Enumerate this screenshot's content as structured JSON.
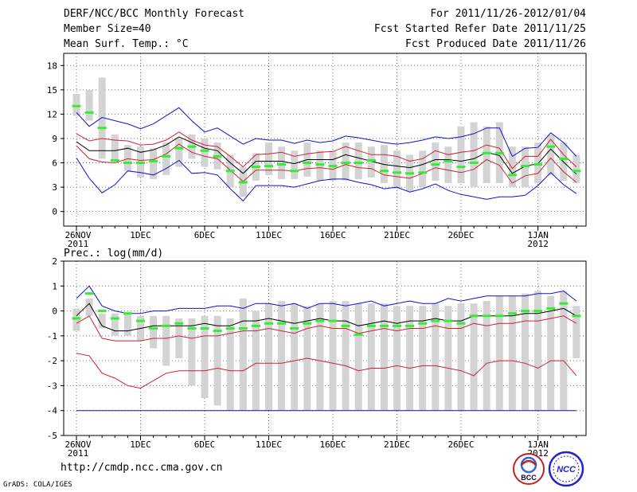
{
  "header": {
    "left": [
      "DERF/NCC/BCC Monthly Forecast",
      "Member Size=40",
      "Mean Surf. Temp.: °C"
    ],
    "right": [
      "For 2011/11/26-2012/01/04",
      "Fcst Started Refer Date 2011/11/25",
      "Fcst Produced Date 2011/11/26"
    ]
  },
  "footer": {
    "url": "http://cmdp.ncc.cma.gov.cn",
    "grads": "GrADS: COLA/IGES",
    "logo_left": "BCC",
    "logo_right": "NCC"
  },
  "colors": {
    "box": "#d3d3d3",
    "median": "#33ee33",
    "mean": "#000000",
    "inner": "#cc2233",
    "outer": "#1111cc",
    "grid": "#777777"
  },
  "chart_data": [
    {
      "type": "box-whisker-ensemble",
      "title": "Mean Surf. Temp.: °C",
      "ylim": [
        -1.8,
        19.5
      ],
      "yticks": [
        0,
        3,
        6,
        9,
        12,
        15,
        18
      ],
      "x_tick_labels": [
        {
          "day": 0,
          "label": "26NOV",
          "sub": "2011"
        },
        {
          "day": 5,
          "label": "1DEC"
        },
        {
          "day": 10,
          "label": "6DEC"
        },
        {
          "day": 15,
          "label": "11DEC"
        },
        {
          "day": 20,
          "label": "16DEC"
        },
        {
          "day": 25,
          "label": "21DEC"
        },
        {
          "day": 30,
          "label": "26DEC"
        },
        {
          "day": 36,
          "label": "1JAN",
          "sub": "2012"
        }
      ],
      "box_low": [
        11.8,
        11.2,
        6.5,
        6.2,
        5.0,
        4.2,
        4.0,
        4.5,
        5.5,
        6.5,
        5.5,
        5.2,
        3.0,
        1.8,
        3.8,
        4.5,
        4.0,
        4.0,
        4.3,
        3.8,
        3.8,
        3.8,
        4.0,
        4.2,
        3.5,
        2.8,
        2.5,
        3.0,
        3.8,
        3.5,
        3.5,
        3.0,
        3.5,
        3.5,
        3.0,
        3.0,
        3.5,
        4.5,
        3.8,
        3.5
      ],
      "box_high": [
        14.5,
        15.0,
        16.5,
        9.5,
        8.2,
        8.0,
        7.8,
        8.5,
        9.0,
        9.5,
        9.0,
        8.5,
        7.0,
        5.5,
        7.2,
        8.5,
        8.0,
        7.5,
        8.5,
        7.5,
        7.5,
        8.5,
        8.5,
        8.0,
        8.2,
        7.5,
        7.0,
        7.5,
        8.5,
        8.0,
        10.5,
        11.0,
        10.5,
        11.0,
        8.0,
        8.0,
        8.5,
        9.5,
        8.5,
        7.0
      ],
      "median": [
        13.0,
        12.2,
        10.3,
        6.3,
        6.0,
        6.0,
        6.2,
        6.8,
        7.8,
        8.0,
        7.5,
        6.8,
        5.0,
        3.6,
        5.5,
        5.6,
        5.8,
        5.0,
        6.0,
        5.8,
        5.6,
        6.0,
        6.0,
        6.3,
        5.0,
        4.8,
        4.7,
        4.8,
        5.8,
        6.2,
        5.5,
        6.0,
        7.2,
        7.2,
        4.5,
        5.6,
        5.8,
        8.0,
        6.5,
        5.0
      ],
      "series": [
        {
          "name": "max",
          "values": [
            12.2,
            10.5,
            11.6,
            11.2,
            10.8,
            10.2,
            10.8,
            11.8,
            12.8,
            11.2,
            9.8,
            10.3,
            9.3,
            8.3,
            9.0,
            8.8,
            8.8,
            8.4,
            8.8,
            8.5,
            8.7,
            9.3,
            9.1,
            8.8,
            8.5,
            8.3,
            8.5,
            8.8,
            9.2,
            9.0,
            9.2,
            9.6,
            10.3,
            10.3,
            6.8,
            7.8,
            7.9,
            9.7,
            8.5,
            6.8
          ]
        },
        {
          "name": "upper",
          "values": [
            9.6,
            8.7,
            9.0,
            8.8,
            8.7,
            8.2,
            8.3,
            8.8,
            9.8,
            8.8,
            8.2,
            8.0,
            6.8,
            5.5,
            7.0,
            7.1,
            7.3,
            6.8,
            7.1,
            7.3,
            7.4,
            8.0,
            7.5,
            7.0,
            7.0,
            6.8,
            6.2,
            6.5,
            7.5,
            7.0,
            7.3,
            7.5,
            8.2,
            7.8,
            5.3,
            6.8,
            6.8,
            8.9,
            7.0,
            5.5
          ]
        },
        {
          "name": "mean",
          "values": [
            8.6,
            7.5,
            7.5,
            7.5,
            7.8,
            7.3,
            7.6,
            8.2,
            9.2,
            8.5,
            7.8,
            7.5,
            6.0,
            4.7,
            6.2,
            6.2,
            6.2,
            5.9,
            6.4,
            6.4,
            6.4,
            7.0,
            6.6,
            6.2,
            5.8,
            5.6,
            5.4,
            5.8,
            6.4,
            6.4,
            6.2,
            6.5,
            7.3,
            6.9,
            4.7,
            5.6,
            5.9,
            7.7,
            6.1,
            4.6
          ]
        },
        {
          "name": "lower",
          "values": [
            8.1,
            6.5,
            6.1,
            6.0,
            6.5,
            6.3,
            6.4,
            7.1,
            8.3,
            7.3,
            6.8,
            6.5,
            5.1,
            3.7,
            5.1,
            5.1,
            5.1,
            5.0,
            5.3,
            5.4,
            5.2,
            5.8,
            5.4,
            5.3,
            4.5,
            4.3,
            4.1,
            4.7,
            5.4,
            5.1,
            4.8,
            5.2,
            6.4,
            5.7,
            3.5,
            4.4,
            4.7,
            6.6,
            4.9,
            3.6
          ]
        },
        {
          "name": "min",
          "values": [
            6.6,
            4.1,
            2.3,
            3.3,
            5.0,
            4.8,
            4.5,
            5.3,
            6.3,
            4.7,
            4.8,
            4.5,
            2.8,
            1.3,
            3.2,
            3.2,
            3.2,
            3.0,
            3.4,
            3.8,
            4.0,
            4.0,
            3.6,
            3.3,
            2.8,
            3.0,
            2.4,
            2.8,
            3.4,
            2.6,
            2.1,
            1.8,
            1.5,
            1.8,
            1.8,
            2.0,
            3.2,
            4.8,
            3.3,
            2.2
          ]
        }
      ]
    },
    {
      "type": "box-whisker-ensemble",
      "title": "Prec.: log(mm/d)",
      "ylim": [
        -5,
        2
      ],
      "yticks": [
        -5,
        -4,
        -3,
        -2,
        -1,
        0,
        1,
        2
      ],
      "x_tick_labels": [
        {
          "day": 0,
          "label": "26NOV",
          "sub": "2011"
        },
        {
          "day": 5,
          "label": "1DEC"
        },
        {
          "day": 10,
          "label": "6DEC"
        },
        {
          "day": 15,
          "label": "11DEC"
        },
        {
          "day": 20,
          "label": "16DEC"
        },
        {
          "day": 25,
          "label": "21DEC"
        },
        {
          "day": 30,
          "label": "26DEC"
        },
        {
          "day": 36,
          "label": "1JAN",
          "sub": "2012"
        }
      ],
      "box_low": [
        -0.8,
        -0.2,
        -0.7,
        -1.0,
        -1.0,
        -1.2,
        -1.5,
        -2.2,
        -1.9,
        -3.0,
        -3.5,
        -3.8,
        -4.0,
        -4.0,
        -4.0,
        -4.0,
        -4.0,
        -4.0,
        -4.0,
        -4.0,
        -4.0,
        -4.0,
        -4.0,
        -4.0,
        -4.0,
        -4.0,
        -4.0,
        -4.0,
        -4.0,
        -4.0,
        -4.0,
        -4.0,
        -4.0,
        -4.0,
        -4.0,
        -4.0,
        -4.0,
        -4.0,
        -4.0,
        -1.9
      ],
      "box_high": [
        0.1,
        0.5,
        -0.1,
        -0.1,
        -0.1,
        -0.2,
        -0.2,
        -0.2,
        -0.3,
        -0.3,
        -0.2,
        -0.2,
        -0.3,
        0.5,
        0.0,
        0.3,
        0.4,
        0.3,
        0.2,
        0.3,
        0.4,
        0.4,
        0.3,
        0.3,
        0.3,
        0.2,
        0.2,
        0.2,
        0.3,
        0.2,
        0.3,
        0.3,
        0.4,
        0.6,
        0.6,
        0.7,
        0.8,
        0.6,
        0.8,
        0.2
      ],
      "median": [
        -0.3,
        0.7,
        0.0,
        -0.3,
        -0.1,
        -0.4,
        -0.7,
        -0.6,
        -0.5,
        -0.7,
        -0.7,
        -0.8,
        -0.7,
        -0.7,
        -0.6,
        -0.5,
        -0.5,
        -0.7,
        -0.5,
        -0.4,
        -0.4,
        -0.6,
        -0.95,
        -0.6,
        -0.6,
        -0.6,
        -0.6,
        -0.5,
        -0.4,
        -0.4,
        -0.5,
        -0.2,
        -0.2,
        -0.2,
        -0.1,
        0.0,
        0.0,
        0.1,
        0.3,
        -0.2
      ],
      "series": [
        {
          "name": "max",
          "values": [
            0.5,
            1.0,
            0.2,
            0.0,
            -0.1,
            -0.1,
            0.0,
            0.0,
            0.1,
            0.1,
            0.1,
            0.2,
            0.2,
            0.1,
            0.3,
            0.3,
            0.2,
            0.3,
            0.1,
            0.3,
            0.3,
            0.2,
            0.3,
            0.4,
            0.2,
            0.3,
            0.4,
            0.3,
            0.3,
            0.5,
            0.4,
            0.5,
            0.6,
            0.6,
            0.6,
            0.6,
            0.7,
            0.7,
            0.8,
            0.4
          ]
        },
        {
          "name": "mean",
          "values": [
            -0.2,
            0.3,
            -0.6,
            -0.8,
            -0.8,
            -0.7,
            -0.6,
            -0.6,
            -0.6,
            -0.6,
            -0.5,
            -0.6,
            -0.6,
            -0.4,
            -0.4,
            -0.3,
            -0.4,
            -0.5,
            -0.4,
            -0.3,
            -0.4,
            -0.4,
            -0.6,
            -0.5,
            -0.4,
            -0.5,
            -0.4,
            -0.4,
            -0.3,
            -0.4,
            -0.4,
            -0.2,
            -0.2,
            -0.2,
            -0.2,
            -0.1,
            -0.1,
            0.0,
            0.1,
            -0.2
          ]
        },
        {
          "name": "upper",
          "values": [
            -0.5,
            -0.2,
            -1.1,
            -1.2,
            -1.2,
            -1.2,
            -1.1,
            -1.1,
            -1.0,
            -1.1,
            -1.0,
            -1.0,
            -0.9,
            -0.8,
            -0.8,
            -0.7,
            -0.8,
            -0.9,
            -0.7,
            -0.6,
            -0.7,
            -0.7,
            -0.9,
            -0.8,
            -0.7,
            -0.8,
            -0.7,
            -0.7,
            -0.6,
            -0.7,
            -0.7,
            -0.5,
            -0.6,
            -0.5,
            -0.5,
            -0.4,
            -0.4,
            -0.3,
            -0.2,
            -0.5
          ]
        },
        {
          "name": "lower",
          "values": [
            -1.7,
            -1.8,
            -2.5,
            -2.7,
            -3.0,
            -3.1,
            -2.8,
            -2.5,
            -2.4,
            -2.4,
            -2.4,
            -2.3,
            -2.4,
            -2.4,
            -2.1,
            -2.1,
            -2.1,
            -2.0,
            -1.9,
            -2.0,
            -2.1,
            -2.2,
            -2.4,
            -2.3,
            -2.3,
            -2.2,
            -2.3,
            -2.2,
            -2.2,
            -2.3,
            -2.4,
            -2.6,
            -2.1,
            -2.0,
            -2.0,
            -2.1,
            -2.3,
            -2.0,
            -2.0,
            -2.6
          ]
        },
        {
          "name": "min",
          "values": [
            -4.0,
            -4.0,
            -4.0,
            -4.0,
            -4.0,
            -4.0,
            -4.0,
            -4.0,
            -4.0,
            -4.0,
            -4.0,
            -4.0,
            -4.0,
            -4.0,
            -4.0,
            -4.0,
            -4.0,
            -4.0,
            -4.0,
            -4.0,
            -4.0,
            -4.0,
            -4.0,
            -4.0,
            -4.0,
            -4.0,
            -4.0,
            -4.0,
            -4.0,
            -4.0,
            -4.0,
            -4.0,
            -4.0,
            -4.0,
            -4.0,
            -4.0,
            -4.0,
            -4.0,
            -4.0,
            -4.0
          ]
        }
      ]
    }
  ]
}
